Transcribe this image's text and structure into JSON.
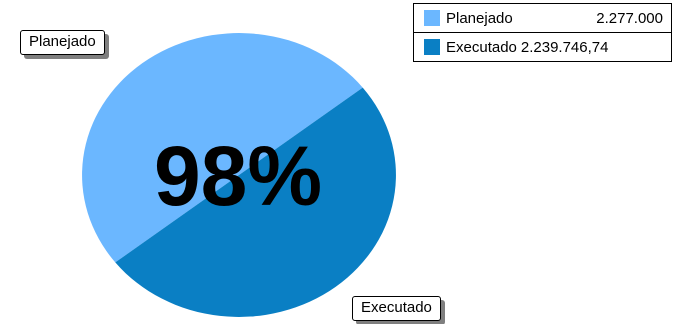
{
  "chart_data": {
    "type": "pie",
    "center_text": "98%",
    "slices": [
      {
        "name": "Planejado",
        "value_label": "2.277.000",
        "value": 2277000,
        "color": "#6BB7FF"
      },
      {
        "name": "Executado",
        "value_label": "2.239.746,74",
        "value": 2239746.74,
        "color": "#0A7FC4"
      }
    ],
    "legend_position": "top-right"
  }
}
